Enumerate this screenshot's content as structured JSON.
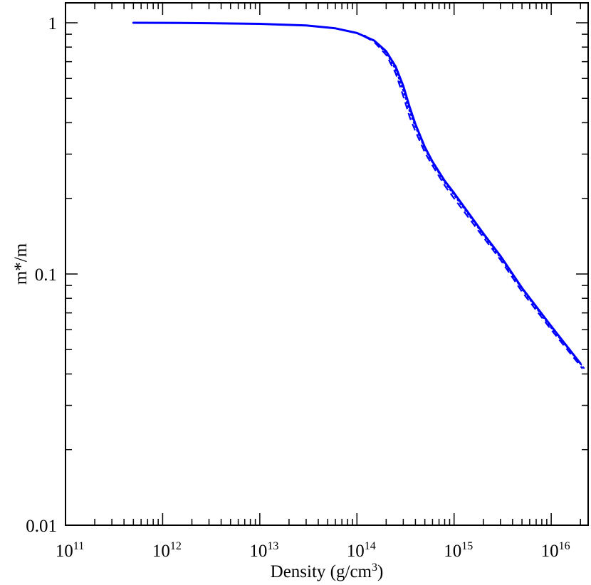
{
  "chart_data": {
    "type": "line",
    "title": "",
    "xlabel": "Density (g/cm",
    "xlabel_sup": "3",
    "xlabel_tail": ")",
    "ylabel": "m*/m",
    "x_scale": "log",
    "y_scale": "log",
    "xlim": [
      100000000000.0,
      2.4e+16
    ],
    "ylim": [
      0.01,
      1.2
    ],
    "grid": false,
    "legend": "none",
    "x_ticks": [
      {
        "base": "10",
        "exp": "11",
        "value": 100000000000.0
      },
      {
        "base": "10",
        "exp": "12",
        "value": 1000000000000.0
      },
      {
        "base": "10",
        "exp": "13",
        "value": 10000000000000.0
      },
      {
        "base": "10",
        "exp": "14",
        "value": 100000000000000.0
      },
      {
        "base": "10",
        "exp": "15",
        "value": 1000000000000000.0
      },
      {
        "base": "10",
        "exp": "16",
        "value": 1e+16
      }
    ],
    "y_ticks": [
      {
        "label": "1",
        "value": 1
      },
      {
        "label": "0.1",
        "value": 0.1
      },
      {
        "label": "0.01",
        "value": 0.01
      }
    ],
    "series": [
      {
        "style": "solid",
        "color": "#0000ff",
        "x": [
          500000000000.0,
          1000000000000.0,
          3000000000000.0,
          10000000000000.0,
          30000000000000.0,
          60000000000000.0,
          100000000000000.0,
          150000000000000.0,
          200000000000000.0,
          250000000000000.0,
          300000000000000.0,
          350000000000000.0,
          400000000000000.0,
          500000000000000.0,
          600000000000000.0,
          800000000000000.0,
          1000000000000000.0,
          2000000000000000.0,
          3000000000000000.0,
          5000000000000000.0,
          1e+16,
          2e+16
        ],
        "y": [
          1.0,
          0.999,
          0.996,
          0.99,
          0.975,
          0.95,
          0.91,
          0.85,
          0.77,
          0.67,
          0.56,
          0.46,
          0.395,
          0.32,
          0.28,
          0.235,
          0.21,
          0.145,
          0.118,
          0.088,
          0.062,
          0.044
        ]
      },
      {
        "style": "dashed",
        "color": "#0000ff",
        "x": [
          120000000000000.0,
          150000000000000.0,
          200000000000000.0,
          250000000000000.0,
          300000000000000.0,
          350000000000000.0,
          400000000000000.0,
          500000000000000.0,
          600000000000000.0,
          800000000000000.0,
          1000000000000000.0,
          2000000000000000.0,
          3000000000000000.0,
          5000000000000000.0,
          1e+16,
          2.1e+16
        ],
        "y": [
          0.88,
          0.84,
          0.745,
          0.63,
          0.51,
          0.42,
          0.37,
          0.305,
          0.27,
          0.225,
          0.2,
          0.14,
          0.114,
          0.085,
          0.06,
          0.042
        ]
      },
      {
        "style": "dotted",
        "color": "#0000ff",
        "x": [
          120000000000000.0,
          150000000000000.0,
          200000000000000.0,
          250000000000000.0,
          300000000000000.0,
          350000000000000.0,
          400000000000000.0,
          500000000000000.0,
          600000000000000.0,
          800000000000000.0,
          1000000000000000.0,
          2000000000000000.0,
          3000000000000000.0,
          5000000000000000.0,
          1e+16,
          2.2e+16
        ],
        "y": [
          0.89,
          0.845,
          0.76,
          0.65,
          0.535,
          0.44,
          0.385,
          0.315,
          0.277,
          0.231,
          0.206,
          0.143,
          0.116,
          0.087,
          0.061,
          0.042
        ]
      }
    ]
  }
}
